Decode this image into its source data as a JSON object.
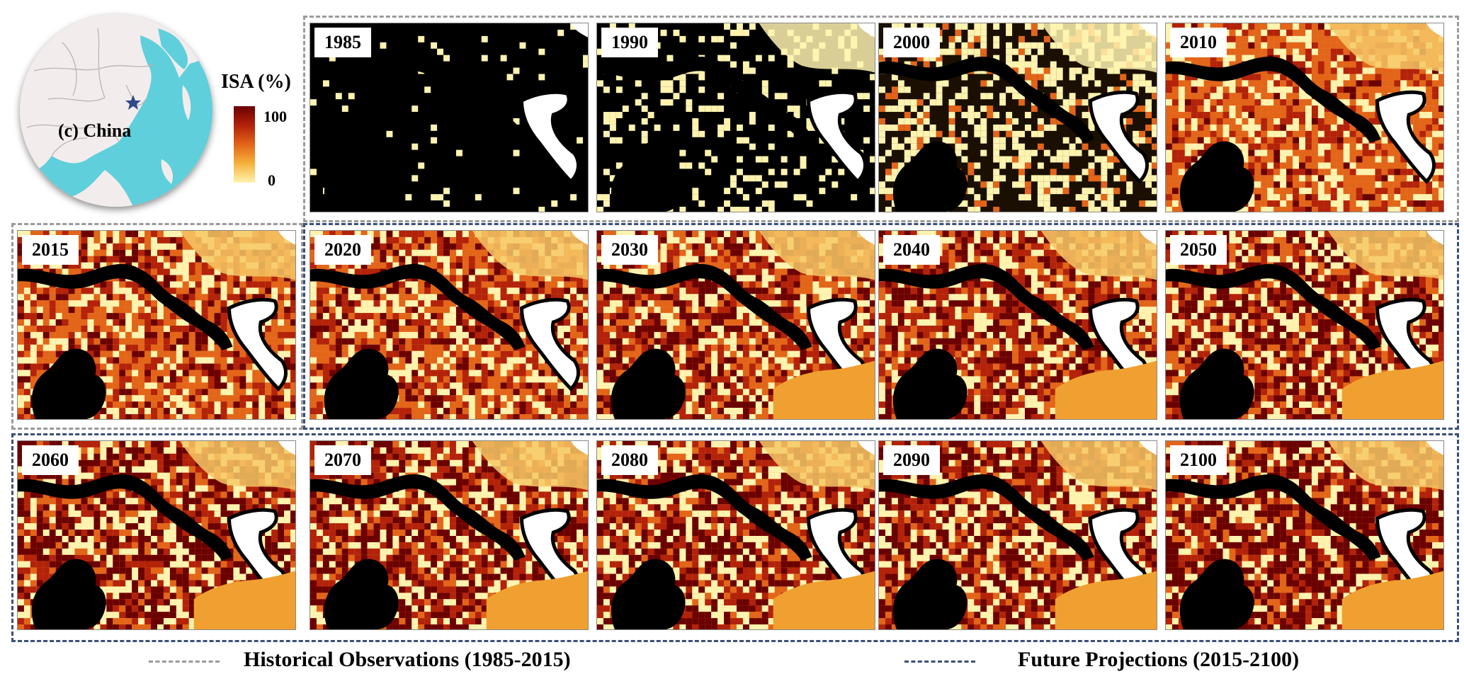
{
  "inset": {
    "region_label": "(c) China",
    "marker_icon": "star-icon",
    "land_color": "#f3ecec",
    "ocean_color": "#5fcfdc",
    "marker_color": "#2e4a8a"
  },
  "colorbar": {
    "title": "ISA (%)",
    "max_label": "100",
    "min_label": "0",
    "colors": [
      "#6b0000",
      "#b3220a",
      "#e2651a",
      "#f6b23c",
      "#fff3b0"
    ]
  },
  "panels": [
    {
      "year": "1985",
      "urban_level": 0.05
    },
    {
      "year": "1990",
      "urban_level": 0.2
    },
    {
      "year": "2000",
      "urban_level": 0.45
    },
    {
      "year": "2010",
      "urban_level": 0.62
    },
    {
      "year": "2015",
      "urban_level": 0.7
    },
    {
      "year": "2020",
      "urban_level": 0.72
    },
    {
      "year": "2030",
      "urban_level": 0.8
    },
    {
      "year": "2040",
      "urban_level": 0.84
    },
    {
      "year": "2050",
      "urban_level": 0.87
    },
    {
      "year": "2060",
      "urban_level": 0.9
    },
    {
      "year": "2070",
      "urban_level": 0.91
    },
    {
      "year": "2080",
      "urban_level": 0.92
    },
    {
      "year": "2090",
      "urban_level": 0.93
    },
    {
      "year": "2100",
      "urban_level": 0.94
    }
  ],
  "legend": {
    "historical": "Historical Observations (1985-2015)",
    "future": "Future Projections (2015-2100)",
    "historical_color": "#9a9a9a",
    "future_color": "#3a4f7a"
  }
}
